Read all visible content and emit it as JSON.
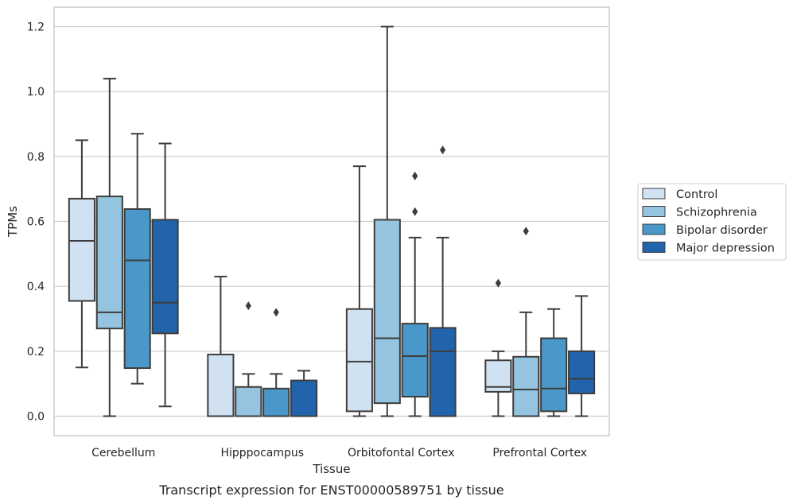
{
  "chart_data": {
    "type": "box",
    "title": "",
    "caption": "Transcript expression for ENST00000589751 by tissue",
    "xlabel": "Tissue",
    "ylabel": "TPMs",
    "ylim": [
      -0.06,
      1.26
    ],
    "yticks": [
      "0.0",
      "0.2",
      "0.4",
      "0.6",
      "0.8",
      "1.0",
      "1.2"
    ],
    "ytick_values": [
      0.0,
      0.2,
      0.4,
      0.6,
      0.8,
      1.0,
      1.2
    ],
    "grid": true,
    "legend_position": "right",
    "categories": [
      "Cerebellum",
      "Hipppocampus",
      "Orbitofontal Cortex",
      "Prefrontal Cortex"
    ],
    "series": [
      {
        "name": "Control",
        "color": "#d0e1f2",
        "boxes": [
          {
            "whislo": 0.15,
            "q1": 0.355,
            "med": 0.54,
            "q3": 0.67,
            "whishi": 0.85,
            "fliers": []
          },
          {
            "whislo": 0.0,
            "q1": 0.0,
            "med": 0.0,
            "q3": 0.19,
            "whishi": 0.43,
            "fliers": []
          },
          {
            "whislo": 0.0,
            "q1": 0.015,
            "med": 0.168,
            "q3": 0.33,
            "whishi": 0.77,
            "fliers": []
          },
          {
            "whislo": 0.0,
            "q1": 0.075,
            "med": 0.09,
            "q3": 0.172,
            "whishi": 0.2,
            "fliers": [
              0.41
            ]
          }
        ]
      },
      {
        "name": "Schizophrenia",
        "color": "#94c4df",
        "boxes": [
          {
            "whislo": 0.0,
            "q1": 0.27,
            "med": 0.32,
            "q3": 0.677,
            "whishi": 1.04,
            "fliers": []
          },
          {
            "whislo": 0.0,
            "q1": 0.0,
            "med": 0.0,
            "q3": 0.09,
            "whishi": 0.13,
            "fliers": [
              0.34
            ]
          },
          {
            "whislo": 0.0,
            "q1": 0.04,
            "med": 0.24,
            "q3": 0.605,
            "whishi": 1.2,
            "fliers": []
          },
          {
            "whislo": 0.0,
            "q1": 0.0,
            "med": 0.082,
            "q3": 0.183,
            "whishi": 0.32,
            "fliers": [
              0.57
            ]
          }
        ]
      },
      {
        "name": "Bipolar disorder",
        "color": "#4a98c9",
        "boxes": [
          {
            "whislo": 0.1,
            "q1": 0.148,
            "med": 0.48,
            "q3": 0.638,
            "whishi": 0.87,
            "fliers": []
          },
          {
            "whislo": 0.0,
            "q1": 0.0,
            "med": 0.0,
            "q3": 0.085,
            "whishi": 0.13,
            "fliers": [
              0.32
            ]
          },
          {
            "whislo": 0.0,
            "q1": 0.06,
            "med": 0.185,
            "q3": 0.285,
            "whishi": 0.55,
            "fliers": [
              0.63,
              0.74
            ]
          },
          {
            "whislo": 0.0,
            "q1": 0.015,
            "med": 0.085,
            "q3": 0.24,
            "whishi": 0.33,
            "fliers": []
          }
        ]
      },
      {
        "name": "Major depression",
        "color": "#2164ab",
        "boxes": [
          {
            "whislo": 0.03,
            "q1": 0.255,
            "med": 0.35,
            "q3": 0.605,
            "whishi": 0.84,
            "fliers": []
          },
          {
            "whislo": 0.0,
            "q1": 0.0,
            "med": 0.0,
            "q3": 0.11,
            "whishi": 0.14,
            "fliers": []
          },
          {
            "whislo": 0.0,
            "q1": 0.0,
            "med": 0.2,
            "q3": 0.272,
            "whishi": 0.55,
            "fliers": [
              0.82
            ]
          },
          {
            "whislo": 0.0,
            "q1": 0.07,
            "med": 0.115,
            "q3": 0.2,
            "whishi": 0.37,
            "fliers": []
          }
        ]
      }
    ]
  }
}
